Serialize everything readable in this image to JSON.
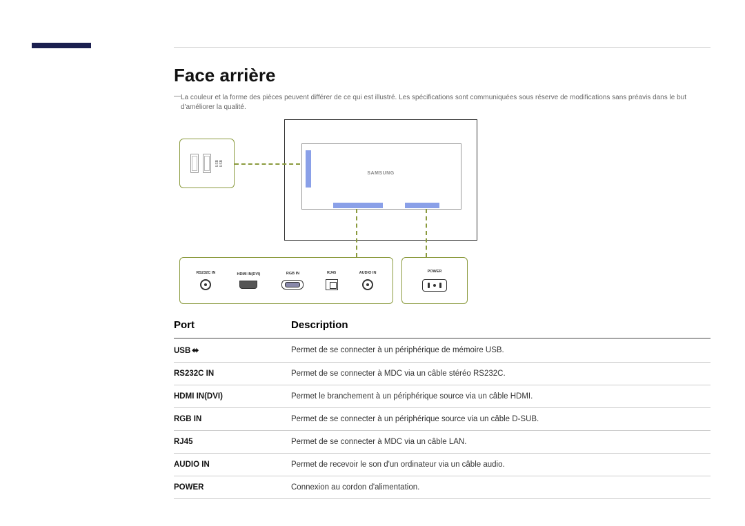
{
  "page": {
    "title": "Face arrière",
    "note": "La couleur et la forme des pièces peuvent différer de ce qui est illustré. Les spécifications sont communiquées sous réserve de modifications sans préavis dans le but d'améliorer la qualité."
  },
  "diagram": {
    "brand": "SAMSUNG",
    "usb_block": {
      "label1": "USB",
      "label2": "USB",
      "symbol": "⎙"
    },
    "port_labels": {
      "rs232c": "RS232C IN",
      "hdmi": "HDMI IN(DVI)",
      "rgb": "RGB IN",
      "rj45": "RJ45",
      "audio": "AUDIO IN",
      "power": "POWER"
    },
    "colors": {
      "box_border": "#8a9a3d",
      "highlight": "#8aa0e8",
      "frame": "#333333",
      "accent_bar": "#1a1f4f"
    }
  },
  "table": {
    "headers": {
      "port": "Port",
      "desc": "Description"
    },
    "rows": [
      {
        "port": "USB",
        "has_usb_icon": true,
        "desc": "Permet de se connecter à un périphérique de mémoire USB."
      },
      {
        "port": "RS232C IN",
        "desc": "Permet de se connecter à MDC via un câble stéréo RS232C."
      },
      {
        "port": "HDMI IN(DVI)",
        "desc": "Permet le branchement à un périphérique source via un câble HDMI."
      },
      {
        "port": "RGB IN",
        "desc": "Permet de se connecter à un périphérique source via un câble D-SUB."
      },
      {
        "port": "RJ45",
        "desc": "Permet de se connecter à MDC via un câble LAN."
      },
      {
        "port": "AUDIO IN",
        "desc": "Permet de recevoir le son d'un ordinateur via un câble audio."
      },
      {
        "port": "POWER",
        "desc": "Connexion au cordon d'alimentation."
      }
    ]
  }
}
